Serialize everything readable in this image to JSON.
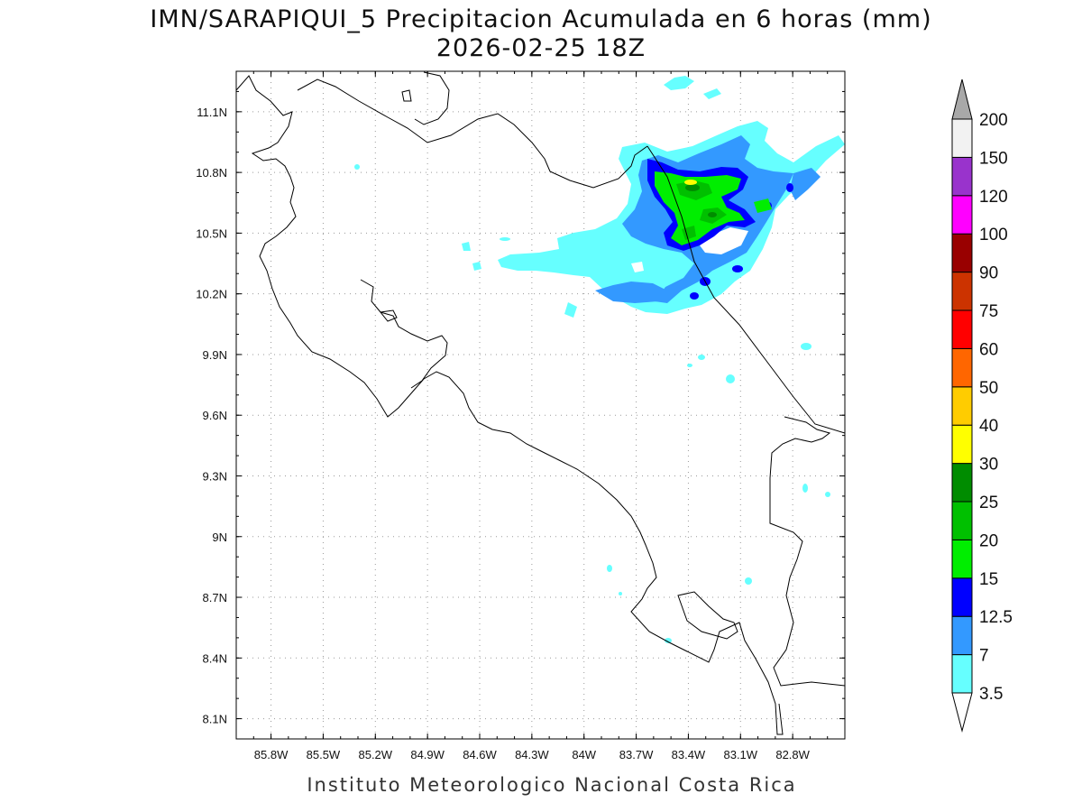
{
  "title": {
    "line1": "IMN/SARAPIQUI_5 Precipitacion Acumulada en 6 horas (mm)",
    "line2": "2026-02-25 18Z"
  },
  "credit": "Instituto Meteorologico Nacional Costa Rica",
  "axes": {
    "lon_labels": [
      "85.8W",
      "85.5W",
      "85.2W",
      "84.9W",
      "84.6W",
      "84.3W",
      "84W",
      "83.7W",
      "83.4W",
      "83.1W",
      "82.8W"
    ],
    "lat_labels": [
      "11.1N",
      "10.8N",
      "10.5N",
      "10.2N",
      "9.9N",
      "9.6N",
      "9.3N",
      "9N",
      "8.7N",
      "8.4N",
      "8.1N"
    ],
    "lon_range": [
      -86.0,
      -82.5
    ],
    "lat_range": [
      8.0,
      11.3
    ],
    "grid": true
  },
  "colorbar": {
    "labels": [
      "3.5",
      "7",
      "12.5",
      "15",
      "20",
      "25",
      "30",
      "40",
      "50",
      "60",
      "75",
      "90",
      "100",
      "120",
      "150",
      "200"
    ],
    "colors": [
      "#66ffff",
      "#3399ff",
      "#0000ff",
      "#00ee00",
      "#00c000",
      "#008c00",
      "#ffff00",
      "#ffcc00",
      "#ff6600",
      "#ff0000",
      "#cc3300",
      "#990000",
      "#ff00ff",
      "#9933cc",
      "#f2f2f2",
      "#a8a8a8"
    ]
  }
}
